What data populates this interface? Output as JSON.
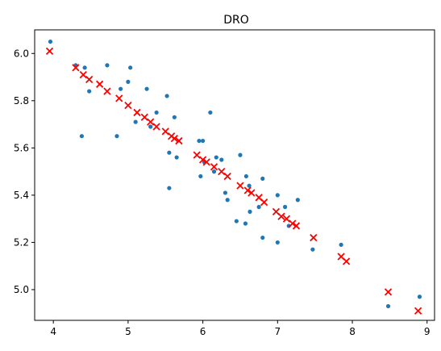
{
  "chart_data": {
    "type": "scatter",
    "title": "DRO",
    "xlabel": "",
    "ylabel": "",
    "xlim": [
      3.75,
      9.1
    ],
    "ylim": [
      4.87,
      6.1
    ],
    "xticks": [
      4,
      5,
      6,
      7,
      8,
      9
    ],
    "yticks": [
      5.0,
      5.2,
      5.4,
      5.6,
      5.8,
      6.0
    ],
    "ytick_labels": [
      "5.0",
      "5.2",
      "5.4",
      "5.6",
      "5.8",
      "6.0"
    ],
    "grid": false,
    "series": [
      {
        "marker": "dot",
        "color": "#1f77b4",
        "points": [
          [
            3.96,
            6.05
          ],
          [
            4.3,
            5.95
          ],
          [
            4.42,
            5.94
          ],
          [
            4.72,
            5.95
          ],
          [
            5.03,
            5.94
          ],
          [
            4.48,
            5.84
          ],
          [
            4.9,
            5.85
          ],
          [
            5.0,
            5.88
          ],
          [
            5.25,
            5.85
          ],
          [
            5.52,
            5.82
          ],
          [
            4.38,
            5.65
          ],
          [
            4.85,
            5.65
          ],
          [
            5.1,
            5.71
          ],
          [
            5.3,
            5.69
          ],
          [
            5.38,
            5.75
          ],
          [
            5.62,
            5.73
          ],
          [
            6.1,
            5.75
          ],
          [
            5.55,
            5.58
          ],
          [
            5.65,
            5.56
          ],
          [
            5.95,
            5.63
          ],
          [
            6.0,
            5.63
          ],
          [
            5.55,
            5.43
          ],
          [
            5.97,
            5.48
          ],
          [
            6.02,
            5.54
          ],
          [
            6.15,
            5.5
          ],
          [
            6.18,
            5.56
          ],
          [
            6.25,
            5.55
          ],
          [
            6.5,
            5.57
          ],
          [
            6.3,
            5.41
          ],
          [
            6.33,
            5.38
          ],
          [
            6.58,
            5.48
          ],
          [
            6.62,
            5.44
          ],
          [
            6.8,
            5.47
          ],
          [
            6.45,
            5.29
          ],
          [
            6.57,
            5.28
          ],
          [
            6.63,
            5.33
          ],
          [
            6.75,
            5.35
          ],
          [
            6.8,
            5.22
          ],
          [
            7.0,
            5.4
          ],
          [
            7.1,
            5.35
          ],
          [
            7.15,
            5.27
          ],
          [
            7.27,
            5.38
          ],
          [
            7.0,
            5.2
          ],
          [
            7.47,
            5.17
          ],
          [
            7.85,
            5.19
          ],
          [
            8.48,
            4.93
          ],
          [
            8.9,
            4.97
          ]
        ]
      },
      {
        "marker": "x",
        "color": "#ff0000",
        "points": [
          [
            3.95,
            6.01
          ],
          [
            4.3,
            5.94
          ],
          [
            4.4,
            5.91
          ],
          [
            4.48,
            5.89
          ],
          [
            4.62,
            5.87
          ],
          [
            4.72,
            5.84
          ],
          [
            4.88,
            5.81
          ],
          [
            5.0,
            5.78
          ],
          [
            5.12,
            5.75
          ],
          [
            5.22,
            5.73
          ],
          [
            5.3,
            5.71
          ],
          [
            5.38,
            5.69
          ],
          [
            5.5,
            5.67
          ],
          [
            5.58,
            5.65
          ],
          [
            5.62,
            5.64
          ],
          [
            5.68,
            5.63
          ],
          [
            5.92,
            5.57
          ],
          [
            6.0,
            5.55
          ],
          [
            6.05,
            5.54
          ],
          [
            6.15,
            5.52
          ],
          [
            6.25,
            5.5
          ],
          [
            6.33,
            5.48
          ],
          [
            6.5,
            5.44
          ],
          [
            6.6,
            5.42
          ],
          [
            6.65,
            5.41
          ],
          [
            6.75,
            5.39
          ],
          [
            6.82,
            5.37
          ],
          [
            6.98,
            5.33
          ],
          [
            7.05,
            5.31
          ],
          [
            7.12,
            5.3
          ],
          [
            7.2,
            5.28
          ],
          [
            7.25,
            5.27
          ],
          [
            7.48,
            5.22
          ],
          [
            7.85,
            5.14
          ],
          [
            7.92,
            5.12
          ],
          [
            8.48,
            4.99
          ],
          [
            8.88,
            4.91
          ]
        ]
      }
    ]
  }
}
